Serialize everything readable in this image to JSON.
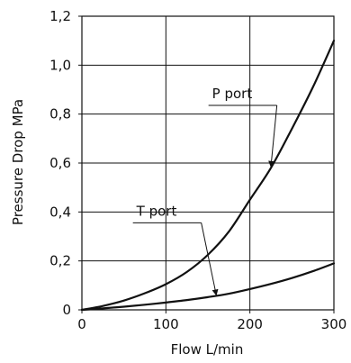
{
  "chart_data": {
    "type": "line",
    "xlabel": "Flow   L/min",
    "ylabel": "Pressure Drop   MPa",
    "xlim": [
      0,
      300
    ],
    "ylim": [
      0,
      1.2
    ],
    "xticks": [
      0,
      100,
      200,
      300
    ],
    "xtick_labels": [
      "0",
      "100",
      "200",
      "300"
    ],
    "yticks": [
      0,
      0.2,
      0.4,
      0.6,
      0.8,
      1.0,
      1.2
    ],
    "ytick_labels": [
      "0",
      "0,2",
      "0,4",
      "0,6",
      "0,8",
      "1,0",
      "1,2"
    ],
    "grid": true,
    "legend": "none",
    "series": [
      {
        "name": "P port",
        "x": [
          0,
          25,
          50,
          75,
          100,
          125,
          150,
          175,
          200,
          225,
          250,
          275,
          300
        ],
        "values": [
          0,
          0.016,
          0.038,
          0.068,
          0.105,
          0.155,
          0.225,
          0.32,
          0.45,
          0.58,
          0.74,
          0.91,
          1.1
        ]
      },
      {
        "name": "T port",
        "x": [
          0,
          25,
          50,
          75,
          100,
          125,
          150,
          175,
          200,
          225,
          250,
          275,
          300
        ],
        "values": [
          0,
          0.006,
          0.013,
          0.021,
          0.03,
          0.04,
          0.052,
          0.066,
          0.085,
          0.106,
          0.13,
          0.158,
          0.19
        ]
      }
    ],
    "annotations": [
      {
        "text": "P port",
        "series": "P port",
        "label_x": 155,
        "label_y": 0.865,
        "arrow_x": 225,
        "arrow_y": 0.585
      },
      {
        "text": "T port",
        "series": "T port",
        "label_x": 65,
        "label_y": 0.385,
        "arrow_x": 160,
        "arrow_y": 0.06
      }
    ]
  }
}
